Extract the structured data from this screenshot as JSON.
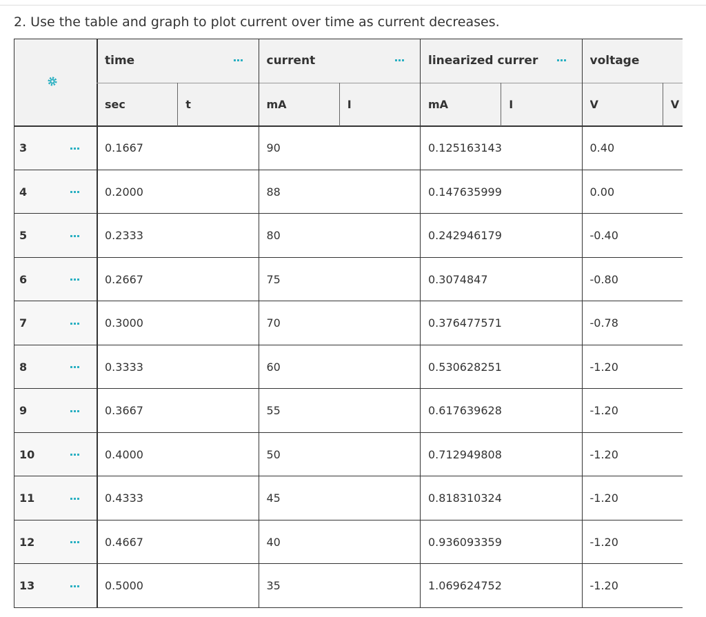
{
  "header": {
    "title": "2. Use the table and graph to plot current over time as current decreases."
  },
  "table": {
    "columns": [
      {
        "name": "time",
        "unit": "sec",
        "symbol": "t"
      },
      {
        "name": "current",
        "unit": "mA",
        "symbol": "I"
      },
      {
        "name": "linearized currer",
        "unit": "mA",
        "symbol": "I"
      },
      {
        "name": "voltage",
        "unit": "V",
        "symbol": "V"
      }
    ],
    "rows": [
      {
        "index": "3",
        "values": [
          "0.1667",
          "90",
          "0.125163143",
          "0.40"
        ]
      },
      {
        "index": "4",
        "values": [
          "0.2000",
          "88",
          "0.147635999",
          "0.00"
        ]
      },
      {
        "index": "5",
        "values": [
          "0.2333",
          "80",
          "0.242946179",
          "-0.40"
        ]
      },
      {
        "index": "6",
        "values": [
          "0.2667",
          "75",
          "0.3074847",
          "-0.80"
        ]
      },
      {
        "index": "7",
        "values": [
          "0.3000",
          "70",
          "0.376477571",
          "-0.78"
        ]
      },
      {
        "index": "8",
        "values": [
          "0.3333",
          "60",
          "0.530628251",
          "-1.20"
        ]
      },
      {
        "index": "9",
        "values": [
          "0.3667",
          "55",
          "0.617639628",
          "-1.20"
        ]
      },
      {
        "index": "10",
        "values": [
          "0.4000",
          "50",
          "0.712949808",
          "-1.20"
        ]
      },
      {
        "index": "11",
        "values": [
          "0.4333",
          "45",
          "0.818310324",
          "-1.20"
        ]
      },
      {
        "index": "12",
        "values": [
          "0.4667",
          "40",
          "0.936093359",
          "-1.20"
        ]
      },
      {
        "index": "13",
        "values": [
          "0.5000",
          "35",
          "1.069624752",
          "-1.20"
        ]
      }
    ]
  }
}
